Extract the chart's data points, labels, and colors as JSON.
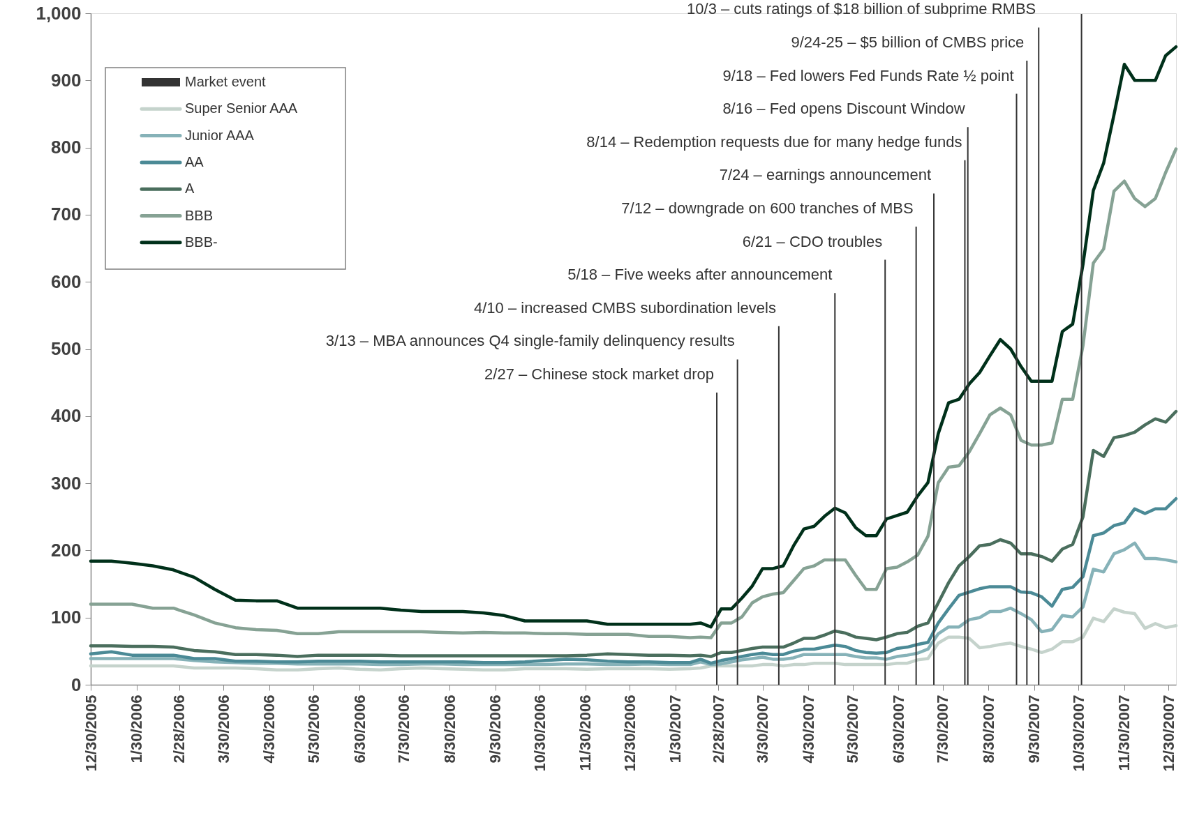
{
  "chart_data": {
    "type": "line",
    "x": [
      "2005-12-30",
      "2006-01-13",
      "2006-01-27",
      "2006-02-10",
      "2006-02-24",
      "2006-03-10",
      "2006-03-24",
      "2006-04-07",
      "2006-04-21",
      "2006-05-05",
      "2006-05-19",
      "2006-06-02",
      "2006-06-16",
      "2006-06-30",
      "2006-07-14",
      "2006-07-28",
      "2006-08-11",
      "2006-08-25",
      "2006-09-08",
      "2006-09-22",
      "2006-10-06",
      "2006-10-20",
      "2006-11-03",
      "2006-11-17",
      "2006-12-01",
      "2006-12-15",
      "2006-12-29",
      "2007-01-12",
      "2007-01-26",
      "2007-02-09",
      "2007-02-16",
      "2007-02-23",
      "2007-03-02",
      "2007-03-09",
      "2007-03-16",
      "2007-03-23",
      "2007-03-30",
      "2007-04-06",
      "2007-04-13",
      "2007-04-20",
      "2007-04-27",
      "2007-05-04",
      "2007-05-11",
      "2007-05-18",
      "2007-05-25",
      "2007-06-01",
      "2007-06-08",
      "2007-06-15",
      "2007-06-22",
      "2007-06-29",
      "2007-07-06",
      "2007-07-13",
      "2007-07-20",
      "2007-07-27",
      "2007-08-03",
      "2007-08-10",
      "2007-08-17",
      "2007-08-24",
      "2007-08-31",
      "2007-09-07",
      "2007-09-14",
      "2007-09-21",
      "2007-09-28",
      "2007-10-05",
      "2007-10-12",
      "2007-10-19",
      "2007-10-26",
      "2007-11-02",
      "2007-11-09",
      "2007-11-16",
      "2007-11-23",
      "2007-11-30",
      "2007-12-07",
      "2007-12-14",
      "2007-12-21",
      "2007-12-28",
      "2008-01-04"
    ],
    "series": [
      {
        "name": "Super Senior AAA",
        "color": "#c5d3cc",
        "values": [
          28,
          28,
          28,
          28,
          28,
          25,
          25,
          25,
          24,
          22,
          22,
          24,
          25,
          23,
          22,
          24,
          25,
          24,
          23,
          22,
          22,
          24,
          24,
          24,
          23,
          24,
          24,
          24,
          23,
          24,
          25,
          28,
          28,
          28,
          28,
          28,
          30,
          30,
          28,
          30,
          30,
          32,
          32,
          32,
          30,
          30,
          30,
          30,
          30,
          32,
          32,
          37,
          39,
          62,
          71,
          71,
          69,
          55,
          57,
          60,
          62,
          57,
          53,
          48,
          53,
          64,
          64,
          71,
          99,
          94,
          113,
          108,
          106,
          84,
          91,
          85,
          88
        ]
      },
      {
        "name": "Junior AAA",
        "color": "#86b2b8",
        "values": [
          39,
          39,
          39,
          39,
          39,
          36,
          34,
          33,
          32,
          32,
          31,
          31,
          31,
          31,
          30,
          30,
          31,
          31,
          30,
          30,
          30,
          30,
          30,
          31,
          31,
          30,
          30,
          31,
          30,
          30,
          34,
          30,
          31,
          34,
          37,
          39,
          41,
          38,
          38,
          40,
          45,
          45,
          45,
          45,
          45,
          42,
          40,
          40,
          38,
          42,
          44,
          47,
          53,
          76,
          86,
          86,
          97,
          100,
          109,
          109,
          114,
          106,
          97,
          79,
          82,
          103,
          101,
          116,
          172,
          168,
          195,
          201,
          211,
          188,
          188,
          186,
          183
        ]
      },
      {
        "name": "AA",
        "color": "#4b8a96",
        "values": [
          46,
          49,
          44,
          44,
          44,
          39,
          39,
          35,
          35,
          34,
          34,
          35,
          35,
          35,
          34,
          34,
          34,
          34,
          34,
          33,
          33,
          34,
          36,
          38,
          37,
          35,
          34,
          34,
          33,
          33,
          38,
          32,
          36,
          39,
          42,
          45,
          47,
          45,
          45,
          50,
          53,
          53,
          56,
          59,
          57,
          51,
          48,
          47,
          48,
          54,
          56,
          60,
          63,
          92,
          113,
          133,
          138,
          143,
          146,
          146,
          146,
          138,
          137,
          131,
          117,
          142,
          145,
          161,
          222,
          226,
          237,
          241,
          262,
          255,
          262,
          262,
          277
        ]
      },
      {
        "name": "A",
        "color": "#4a6e5d",
        "values": [
          58,
          58,
          57,
          57,
          56,
          51,
          49,
          45,
          45,
          44,
          42,
          44,
          44,
          44,
          44,
          43,
          43,
          43,
          43,
          43,
          43,
          43,
          43,
          43,
          44,
          46,
          45,
          44,
          44,
          43,
          44,
          42,
          48,
          48,
          51,
          54,
          56,
          56,
          56,
          62,
          69,
          69,
          74,
          80,
          77,
          71,
          69,
          67,
          71,
          76,
          78,
          87,
          92,
          122,
          152,
          177,
          191,
          207,
          209,
          216,
          211,
          195,
          195,
          191,
          184,
          202,
          209,
          250,
          349,
          340,
          368,
          371,
          376,
          387,
          396,
          391,
          407
        ]
      },
      {
        "name": "BBB",
        "color": "#86a294",
        "values": [
          120,
          120,
          120,
          114,
          114,
          104,
          92,
          85,
          82,
          81,
          76,
          76,
          79,
          79,
          79,
          79,
          79,
          78,
          77,
          78,
          77,
          77,
          76,
          76,
          75,
          75,
          75,
          72,
          72,
          70,
          71,
          70,
          92,
          92,
          101,
          122,
          131,
          135,
          137,
          155,
          173,
          177,
          186,
          186,
          186,
          163,
          142,
          142,
          173,
          175,
          183,
          193,
          221,
          301,
          324,
          326,
          347,
          374,
          402,
          412,
          402,
          364,
          357,
          357,
          360,
          425,
          425,
          505,
          628,
          649,
          735,
          750,
          724,
          712,
          724,
          763,
          798
        ]
      },
      {
        "name": "BBB-",
        "color": "#00301a",
        "values": [
          184,
          184,
          181,
          177,
          171,
          160,
          142,
          126,
          125,
          125,
          114,
          114,
          114,
          114,
          114,
          111,
          109,
          109,
          109,
          107,
          103,
          95,
          95,
          95,
          95,
          90,
          90,
          90,
          90,
          90,
          92,
          86,
          113,
          113,
          129,
          147,
          173,
          173,
          177,
          207,
          232,
          236,
          251,
          263,
          256,
          234,
          222,
          222,
          247,
          252,
          257,
          281,
          301,
          374,
          420,
          425,
          448,
          465,
          490,
          514,
          500,
          474,
          452,
          452,
          452,
          526,
          537,
          626,
          736,
          777,
          849,
          924,
          900,
          900,
          900,
          937,
          950
        ]
      }
    ],
    "xlim": [
      "2005-12-30",
      "2008-01-04"
    ],
    "xticks": [
      {
        "value": "2005-12-30",
        "label": "12/30/2005"
      },
      {
        "value": "2006-01-30",
        "label": "1/30/2006"
      },
      {
        "value": "2006-02-28",
        "label": "2/28/2006"
      },
      {
        "value": "2006-03-30",
        "label": "3/30/2006"
      },
      {
        "value": "2006-04-30",
        "label": "4/30/2006"
      },
      {
        "value": "2006-05-30",
        "label": "5/30/2006"
      },
      {
        "value": "2006-06-30",
        "label": "6/30/2006"
      },
      {
        "value": "2006-07-30",
        "label": "7/30/2006"
      },
      {
        "value": "2006-08-30",
        "label": "8/30/2006"
      },
      {
        "value": "2006-09-30",
        "label": "9/30/2006"
      },
      {
        "value": "2006-10-30",
        "label": "10/30/2006"
      },
      {
        "value": "2006-11-30",
        "label": "11/30/2006"
      },
      {
        "value": "2006-12-30",
        "label": "12/30/2006"
      },
      {
        "value": "2007-01-30",
        "label": "1/30/2007"
      },
      {
        "value": "2007-02-28",
        "label": "2/28/2007"
      },
      {
        "value": "2007-03-30",
        "label": "3/30/2007"
      },
      {
        "value": "2007-04-30",
        "label": "4/30/2007"
      },
      {
        "value": "2007-05-30",
        "label": "5/30/2007"
      },
      {
        "value": "2007-06-30",
        "label": "6/30/2007"
      },
      {
        "value": "2007-07-30",
        "label": "7/30/2007"
      },
      {
        "value": "2007-08-30",
        "label": "8/30/2007"
      },
      {
        "value": "2007-09-30",
        "label": "9/30/2007"
      },
      {
        "value": "2007-10-30",
        "label": "10/30/2007"
      },
      {
        "value": "2007-11-30",
        "label": "11/30/2007"
      },
      {
        "value": "2007-12-30",
        "label": "12/30/2007"
      }
    ],
    "ylim": [
      0,
      1000
    ],
    "yticks": [
      0,
      100,
      200,
      300,
      400,
      500,
      600,
      700,
      800,
      900,
      {
        "value": 1000,
        "label": "1,000"
      }
    ],
    "grid": false,
    "legend": "top left",
    "annotations": [
      "Market event"
    ],
    "ref_lines": [
      {
        "axis": "x",
        "value": "2007-02-27",
        "label": "2/27 – Chinese stock market drop",
        "color": "#333333"
      },
      {
        "axis": "x",
        "value": "2007-03-13",
        "label": "3/13 – MBA announces Q4 single-family delinquency results",
        "color": "#333333"
      },
      {
        "axis": "x",
        "value": "2007-04-10",
        "label": "4/10 – increased CMBS subordination levels",
        "color": "#333333"
      },
      {
        "axis": "x",
        "value": "2007-05-18",
        "label": "5/18 – Five weeks after announcement",
        "color": "#333333"
      },
      {
        "axis": "x",
        "value": "2007-06-21",
        "label": "6/21 – CDO troubles",
        "color": "#333333"
      },
      {
        "axis": "x",
        "value": "2007-07-12",
        "label": "7/12 – downgrade on 600 tranches of MBS",
        "color": "#333333"
      },
      {
        "axis": "x",
        "value": "2007-07-24",
        "label": "7/24 – earnings announcement",
        "color": "#333333"
      },
      {
        "axis": "x",
        "value": "2007-08-14",
        "label": "8/14 – Redemption requests due for many hedge funds",
        "color": "#333333"
      },
      {
        "axis": "x",
        "value": "2007-08-16",
        "label": "8/16 – Fed opens Discount Window",
        "color": "#333333"
      },
      {
        "axis": "x",
        "value": "2007-09-18",
        "label": "9/18 – Fed lowers Fed Funds Rate ½ point",
        "color": "#333333"
      },
      {
        "axis": "x",
        "value": "2007-09-25",
        "label": "9/24-25 – $5 billion of CMBS price",
        "color": "#333333"
      },
      {
        "axis": "x",
        "value": "2007-10-03",
        "label": "10/3 – cuts ratings of $18 billion of subprime RMBS",
        "color": "#333333"
      },
      {
        "axis": "x",
        "value": "2007-11-01",
        "color": "#333333"
      }
    ]
  }
}
